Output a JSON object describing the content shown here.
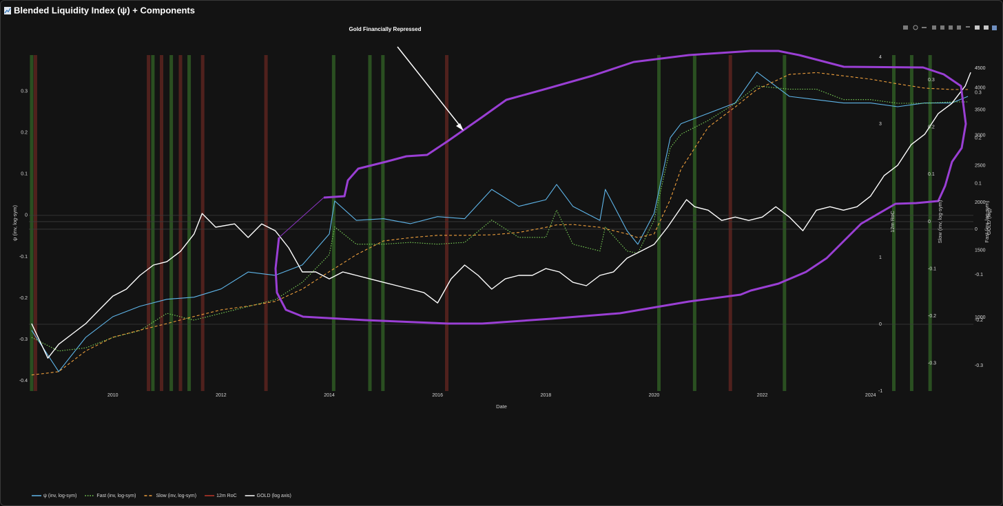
{
  "chart_data": {
    "type": "line",
    "title": "Blended Liquidity Index (ψ) + Components",
    "annotation": "Gold Financially Repressed",
    "xlabel": "Date",
    "ylabel": "ψ (inv, log-sym)",
    "xlim": [
      2008.45,
      2025.9
    ],
    "xticks": [
      2010,
      2012,
      2014,
      2016,
      2018,
      2020,
      2022,
      2024
    ],
    "ylim": [
      -0.425,
      0.388
    ],
    "yticks": [
      0.3,
      0.2,
      0.1,
      0,
      -0.1,
      -0.2,
      -0.3,
      -0.4
    ],
    "axes": {
      "roc": {
        "label": "12m RoC",
        "lim": [
          -1.0,
          4.03
        ],
        "ticks": [
          4,
          3,
          1,
          0,
          -1
        ]
      },
      "slow": {
        "label": "Slow (inv, log-sym)",
        "lim": [
          -0.359,
          0.353
        ],
        "ticks": [
          0.3,
          0.2,
          0.1,
          0,
          -0.1,
          -0.2,
          -0.3
        ]
      },
      "fast": {
        "label": "Fast (inv, log-sym)",
        "lim": [
          -0.356,
          0.383
        ],
        "ticks": [
          0.3,
          0.2,
          0.1,
          0,
          -0.1,
          -0.2,
          -0.3
        ]
      },
      "gold": {
        "label": "GOLD (log)",
        "lim": [
          641,
          4875
        ],
        "log": true,
        "ticks": [
          4500,
          4000,
          3500,
          3000,
          2500,
          2000,
          1500,
          1000
        ]
      }
    },
    "zeroline": true,
    "legend": "bottom-left",
    "x": [
      2008.5,
      2009,
      2009.5,
      2010,
      2010.5,
      2011,
      2011.5,
      2012,
      2012.5,
      2013,
      2013.5,
      2014,
      2014.1,
      2014.5,
      2015,
      2015.5,
      2016,
      2016.5,
      2017,
      2017.5,
      2018,
      2018.2,
      2018.5,
      2019,
      2019.1,
      2019.5,
      2019.7,
      2020,
      2020.3,
      2020.5,
      2021,
      2021.5,
      2021.9,
      2022.5,
      2023,
      2023.5,
      2024,
      2024.5,
      2025,
      2025.5,
      2025.8
    ],
    "series": [
      {
        "name": "ψ (inv, log-sym)",
        "color": "#5fb6ea",
        "dash": "solid",
        "axis": "y",
        "values": [
          -0.278,
          -0.378,
          -0.295,
          -0.245,
          -0.22,
          -0.203,
          -0.198,
          -0.178,
          -0.137,
          -0.145,
          -0.12,
          -0.045,
          0.035,
          -0.012,
          -0.008,
          -0.02,
          -0.003,
          -0.008,
          0.063,
          0.022,
          0.038,
          0.075,
          0.022,
          -0.012,
          0.063,
          -0.037,
          -0.07,
          0.005,
          0.188,
          0.222,
          0.247,
          0.272,
          0.347,
          0.288,
          0.28,
          0.272,
          0.272,
          0.263,
          0.272,
          0.272,
          0.288
        ]
      },
      {
        "name": "Fast (inv, log-sym)",
        "color": "#7fd95a",
        "dash": "dot",
        "axis": "fast",
        "values": [
          -0.238,
          -0.268,
          -0.261,
          -0.238,
          -0.223,
          -0.185,
          -0.2,
          -0.185,
          -0.17,
          -0.155,
          -0.117,
          -0.056,
          0.005,
          -0.033,
          -0.033,
          -0.029,
          -0.033,
          -0.029,
          0.02,
          -0.018,
          -0.018,
          0.042,
          -0.033,
          -0.048,
          0.005,
          -0.048,
          -0.053,
          0.02,
          0.179,
          0.209,
          0.239,
          0.277,
          0.315,
          0.308,
          0.308,
          0.285,
          0.285,
          0.277,
          0.277,
          0.28,
          0.28
        ]
      },
      {
        "name": "Slow (inv, log-sym)",
        "color": "#f0a03c",
        "dash": "dash",
        "axis": "slow",
        "values": [
          -0.325,
          -0.318,
          -0.274,
          -0.245,
          -0.23,
          -0.216,
          -0.201,
          -0.187,
          -0.179,
          -0.169,
          -0.143,
          -0.106,
          -0.099,
          -0.07,
          -0.041,
          -0.034,
          -0.029,
          -0.029,
          -0.028,
          -0.023,
          -0.012,
          -0.007,
          -0.006,
          -0.012,
          -0.015,
          -0.026,
          -0.034,
          -0.026,
          0.047,
          0.112,
          0.2,
          0.243,
          0.28,
          0.312,
          0.316,
          0.309,
          0.302,
          0.292,
          0.283,
          0.28,
          0.28
        ]
      },
      {
        "name": "12m RoC",
        "color": "#c0392b",
        "dash": "solid",
        "axis": "roc"
      },
      {
        "name": "GOLD (log axis)",
        "color": "#ffffff",
        "dash": "solid",
        "axis": "gold",
        "x": [
          2008.5,
          2008.8,
          2009.0,
          2009.25,
          2009.5,
          2009.75,
          2010.0,
          2010.25,
          2010.5,
          2010.75,
          2011.0,
          2011.25,
          2011.5,
          2011.65,
          2011.9,
          2012.25,
          2012.5,
          2012.75,
          2013.0,
          2013.25,
          2013.5,
          2013.75,
          2014.0,
          2014.25,
          2014.5,
          2014.75,
          2015.0,
          2015.25,
          2015.5,
          2015.75,
          2016.0,
          2016.25,
          2016.5,
          2016.75,
          2017.0,
          2017.25,
          2017.5,
          2017.75,
          2018.0,
          2018.25,
          2018.5,
          2018.75,
          2019.0,
          2019.25,
          2019.5,
          2019.75,
          2020.0,
          2020.25,
          2020.6,
          2020.75,
          2021.0,
          2021.25,
          2021.5,
          2021.75,
          2022.0,
          2022.25,
          2022.5,
          2022.75,
          2023.0,
          2023.25,
          2023.5,
          2023.75,
          2024.0,
          2024.25,
          2024.5,
          2024.75,
          2025.0,
          2025.25,
          2025.5,
          2025.75,
          2025.85
        ],
        "values": [
          963,
          782,
          850,
          905,
          963,
          1047,
          1137,
          1186,
          1289,
          1372,
          1400,
          1490,
          1653,
          1873,
          1724,
          1759,
          1620,
          1759,
          1688,
          1522,
          1316,
          1316,
          1262,
          1316,
          1289,
          1262,
          1236,
          1211,
          1186,
          1161,
          1091,
          1262,
          1372,
          1289,
          1186,
          1262,
          1289,
          1289,
          1343,
          1316,
          1236,
          1211,
          1289,
          1316,
          1430,
          1490,
          1554,
          1724,
          2036,
          1951,
          1911,
          1796,
          1833,
          1796,
          1833,
          1951,
          1833,
          1688,
          1911,
          1951,
          1911,
          1951,
          2080,
          2354,
          2505,
          2837,
          3021,
          3423,
          3640,
          4045,
          4392
        ]
      }
    ],
    "signals": [
      {
        "x": 2008.5,
        "color": "#2f5a24"
      },
      {
        "x": 2010.74,
        "color": "#2f5a24"
      },
      {
        "x": 2011.08,
        "color": "#2f5a24"
      },
      {
        "x": 2011.41,
        "color": "#2f5a24"
      },
      {
        "x": 2014.08,
        "color": "#2f5a24"
      },
      {
        "x": 2014.75,
        "color": "#2f5a24"
      },
      {
        "x": 2014.99,
        "color": "#2f5a24"
      },
      {
        "x": 2020.09,
        "color": "#2f5a24"
      },
      {
        "x": 2020.75,
        "color": "#2f5a24"
      },
      {
        "x": 2022.41,
        "color": "#2f5a24"
      },
      {
        "x": 2024.43,
        "color": "#2f5a24"
      },
      {
        "x": 2024.76,
        "color": "#2f5a24"
      },
      {
        "x": 2025.1,
        "color": "#2f5a24"
      },
      {
        "x": 2008.57,
        "color": "#5c2420"
      },
      {
        "x": 2010.66,
        "color": "#5c2420"
      },
      {
        "x": 2010.9,
        "color": "#5c2420"
      },
      {
        "x": 2011.25,
        "color": "#5c2420"
      },
      {
        "x": 2011.66,
        "color": "#5c2420"
      },
      {
        "x": 2012.83,
        "color": "#5c2420"
      },
      {
        "x": 2016.17,
        "color": "#5c2420"
      },
      {
        "x": 2021.41,
        "color": "#5c2420"
      }
    ]
  }
}
